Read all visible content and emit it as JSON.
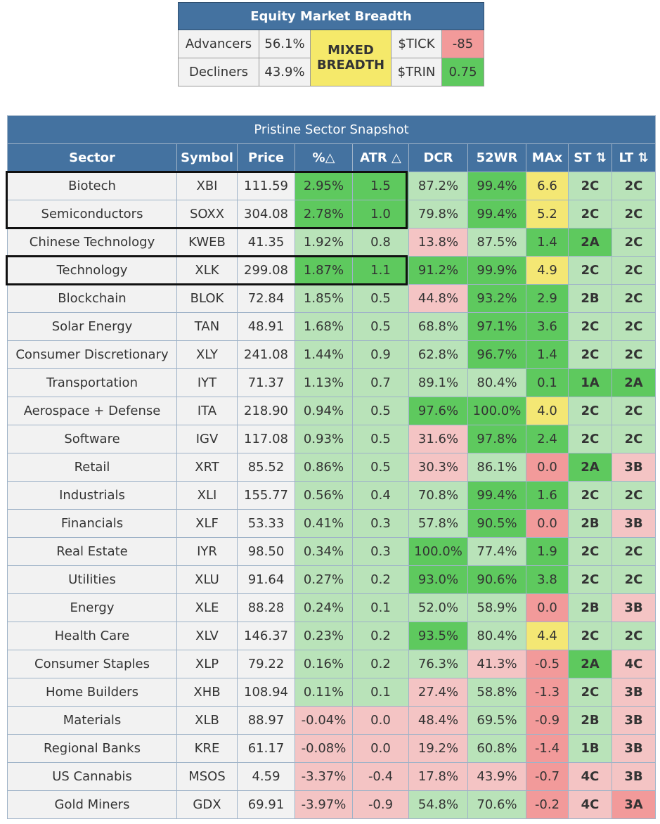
{
  "breadth": {
    "title": "Equity Market Breadth",
    "advancers_label": "Advancers",
    "advancers_value": "56.1%",
    "decliners_label": "Decliners",
    "decliners_value": "43.9%",
    "status_line1": "MIXED",
    "status_line2": "BREADTH",
    "tick_label": "$TICK",
    "tick_value": "-85",
    "trin_label": "$TRIN",
    "trin_value": "0.75"
  },
  "snapshot": {
    "title": "Pristine Sector Snapshot",
    "columns": [
      "Sector",
      "Symbol",
      "Price",
      "%△",
      "ATR △",
      "DCR",
      "52WR",
      "MAx",
      "ST ⇅",
      "LT ⇅"
    ],
    "rows": [
      {
        "sector": "Biotech",
        "symbol": "XBI",
        "price": "111.59",
        "pct": "2.95%",
        "atr": "1.5",
        "dcr": "87.2%",
        "wr": "99.4%",
        "max": "6.6",
        "st": "2C",
        "lt": "2C",
        "colors": [
          "dg",
          "dg",
          "lg",
          "dg",
          "y",
          "lg",
          "lg"
        ]
      },
      {
        "sector": "Semiconductors",
        "symbol": "SOXX",
        "price": "304.08",
        "pct": "2.78%",
        "atr": "1.0",
        "dcr": "79.8%",
        "wr": "99.4%",
        "max": "5.2",
        "st": "2C",
        "lt": "2C",
        "colors": [
          "dg",
          "dg",
          "lg",
          "dg",
          "y",
          "lg",
          "lg"
        ]
      },
      {
        "sector": "Chinese Technology",
        "symbol": "KWEB",
        "price": "41.35",
        "pct": "1.92%",
        "atr": "0.8",
        "dcr": "13.8%",
        "wr": "87.5%",
        "max": "1.4",
        "st": "2A",
        "lt": "2C",
        "colors": [
          "lg",
          "lg",
          "lr",
          "lg",
          "dg",
          "dg",
          "lg"
        ]
      },
      {
        "sector": "Technology",
        "symbol": "XLK",
        "price": "299.08",
        "pct": "1.87%",
        "atr": "1.1",
        "dcr": "91.2%",
        "wr": "99.9%",
        "max": "4.9",
        "st": "2C",
        "lt": "2C",
        "colors": [
          "dg",
          "dg",
          "dg",
          "dg",
          "y",
          "lg",
          "lg"
        ]
      },
      {
        "sector": "Blockchain",
        "symbol": "BLOK",
        "price": "72.84",
        "pct": "1.85%",
        "atr": "0.5",
        "dcr": "44.8%",
        "wr": "93.2%",
        "max": "2.9",
        "st": "2B",
        "lt": "2C",
        "colors": [
          "lg",
          "lg",
          "lr",
          "dg",
          "dg",
          "lg",
          "lg"
        ]
      },
      {
        "sector": "Solar Energy",
        "symbol": "TAN",
        "price": "48.91",
        "pct": "1.68%",
        "atr": "0.5",
        "dcr": "68.8%",
        "wr": "97.1%",
        "max": "3.6",
        "st": "2C",
        "lt": "2C",
        "colors": [
          "lg",
          "lg",
          "lg",
          "dg",
          "dg",
          "lg",
          "lg"
        ]
      },
      {
        "sector": "Consumer Discretionary",
        "symbol": "XLY",
        "price": "241.08",
        "pct": "1.44%",
        "atr": "0.9",
        "dcr": "62.8%",
        "wr": "96.7%",
        "max": "1.4",
        "st": "2C",
        "lt": "2C",
        "colors": [
          "lg",
          "lg",
          "lg",
          "dg",
          "dg",
          "lg",
          "lg"
        ]
      },
      {
        "sector": "Transportation",
        "symbol": "IYT",
        "price": "71.37",
        "pct": "1.13%",
        "atr": "0.7",
        "dcr": "89.1%",
        "wr": "80.4%",
        "max": "0.1",
        "st": "1A",
        "lt": "2A",
        "colors": [
          "lg",
          "lg",
          "lg",
          "lg",
          "dg",
          "dg",
          "dg"
        ]
      },
      {
        "sector": "Aerospace + Defense",
        "symbol": "ITA",
        "price": "218.90",
        "pct": "0.94%",
        "atr": "0.5",
        "dcr": "97.6%",
        "wr": "100.0%",
        "max": "4.0",
        "st": "2C",
        "lt": "2C",
        "colors": [
          "lg",
          "lg",
          "dg",
          "dg",
          "y",
          "lg",
          "lg"
        ]
      },
      {
        "sector": "Software",
        "symbol": "IGV",
        "price": "117.08",
        "pct": "0.93%",
        "atr": "0.5",
        "dcr": "31.6%",
        "wr": "97.8%",
        "max": "2.4",
        "st": "2C",
        "lt": "2C",
        "colors": [
          "lg",
          "lg",
          "lr",
          "dg",
          "dg",
          "lg",
          "lg"
        ]
      },
      {
        "sector": "Retail",
        "symbol": "XRT",
        "price": "85.52",
        "pct": "0.86%",
        "atr": "0.5",
        "dcr": "30.3%",
        "wr": "86.1%",
        "max": "0.0",
        "st": "2A",
        "lt": "3B",
        "colors": [
          "lg",
          "lg",
          "lr",
          "lg",
          "red",
          "dg",
          "lr"
        ]
      },
      {
        "sector": "Industrials",
        "symbol": "XLI",
        "price": "155.77",
        "pct": "0.56%",
        "atr": "0.4",
        "dcr": "70.8%",
        "wr": "99.4%",
        "max": "1.6",
        "st": "2C",
        "lt": "2C",
        "colors": [
          "lg",
          "lg",
          "lg",
          "dg",
          "dg",
          "lg",
          "lg"
        ]
      },
      {
        "sector": "Financials",
        "symbol": "XLF",
        "price": "53.33",
        "pct": "0.41%",
        "atr": "0.3",
        "dcr": "57.8%",
        "wr": "90.5%",
        "max": "0.0",
        "st": "2B",
        "lt": "3B",
        "colors": [
          "lg",
          "lg",
          "lg",
          "dg",
          "red",
          "lg",
          "lr"
        ]
      },
      {
        "sector": "Real Estate",
        "symbol": "IYR",
        "price": "98.50",
        "pct": "0.34%",
        "atr": "0.3",
        "dcr": "100.0%",
        "wr": "77.4%",
        "max": "1.9",
        "st": "2C",
        "lt": "2C",
        "colors": [
          "lg",
          "lg",
          "dg",
          "lg",
          "dg",
          "lg",
          "lg"
        ]
      },
      {
        "sector": "Utilities",
        "symbol": "XLU",
        "price": "91.64",
        "pct": "0.27%",
        "atr": "0.2",
        "dcr": "93.0%",
        "wr": "90.6%",
        "max": "3.8",
        "st": "2C",
        "lt": "2C",
        "colors": [
          "lg",
          "lg",
          "dg",
          "dg",
          "dg",
          "lg",
          "lg"
        ]
      },
      {
        "sector": "Energy",
        "symbol": "XLE",
        "price": "88.28",
        "pct": "0.24%",
        "atr": "0.1",
        "dcr": "52.0%",
        "wr": "58.9%",
        "max": "0.0",
        "st": "2B",
        "lt": "3B",
        "colors": [
          "lg",
          "lg",
          "lg",
          "lg",
          "red",
          "lg",
          "lr"
        ]
      },
      {
        "sector": "Health Care",
        "symbol": "XLV",
        "price": "146.37",
        "pct": "0.23%",
        "atr": "0.2",
        "dcr": "93.5%",
        "wr": "80.4%",
        "max": "4.4",
        "st": "2C",
        "lt": "2C",
        "colors": [
          "lg",
          "lg",
          "dg",
          "lg",
          "y",
          "lg",
          "lg"
        ]
      },
      {
        "sector": "Consumer Staples",
        "symbol": "XLP",
        "price": "79.22",
        "pct": "0.16%",
        "atr": "0.2",
        "dcr": "76.3%",
        "wr": "41.3%",
        "max": "-0.5",
        "st": "2A",
        "lt": "4C",
        "colors": [
          "lg",
          "lg",
          "lg",
          "lr",
          "red",
          "dg",
          "lr"
        ]
      },
      {
        "sector": "Home Builders",
        "symbol": "XHB",
        "price": "108.94",
        "pct": "0.11%",
        "atr": "0.1",
        "dcr": "27.4%",
        "wr": "58.8%",
        "max": "-1.3",
        "st": "2C",
        "lt": "3B",
        "colors": [
          "lg",
          "lg",
          "lr",
          "lg",
          "red",
          "lg",
          "lr"
        ]
      },
      {
        "sector": "Materials",
        "symbol": "XLB",
        "price": "88.97",
        "pct": "-0.04%",
        "atr": "0.0",
        "dcr": "48.4%",
        "wr": "69.5%",
        "max": "-0.9",
        "st": "2B",
        "lt": "3B",
        "colors": [
          "lr",
          "lr",
          "lr",
          "lg",
          "red",
          "lg",
          "lr"
        ]
      },
      {
        "sector": "Regional Banks",
        "symbol": "KRE",
        "price": "61.17",
        "pct": "-0.08%",
        "atr": "0.0",
        "dcr": "19.2%",
        "wr": "60.8%",
        "max": "-1.4",
        "st": "1B",
        "lt": "3B",
        "colors": [
          "lr",
          "lr",
          "lr",
          "lg",
          "red",
          "lg",
          "lr"
        ]
      },
      {
        "sector": "US Cannabis",
        "symbol": "MSOS",
        "price": "4.59",
        "pct": "-3.37%",
        "atr": "-0.4",
        "dcr": "17.8%",
        "wr": "43.9%",
        "max": "-0.7",
        "st": "4C",
        "lt": "3B",
        "colors": [
          "lr",
          "lr",
          "lr",
          "lr",
          "red",
          "lr",
          "lr"
        ]
      },
      {
        "sector": "Gold Miners",
        "symbol": "GDX",
        "price": "69.91",
        "pct": "-3.97%",
        "atr": "-0.9",
        "dcr": "54.8%",
        "wr": "70.6%",
        "max": "-0.2",
        "st": "4C",
        "lt": "3A",
        "colors": [
          "lr",
          "lr",
          "lg",
          "lg",
          "red",
          "lr",
          "red"
        ]
      }
    ]
  },
  "colors": {
    "header_blue": "#4472a0",
    "dark_green": "#5ec95e",
    "light_green": "#b9e3b9",
    "light_red": "#f4c4c4",
    "red": "#f29a9a",
    "yellow": "#f4e774",
    "neutral": "#f2f2f2"
  }
}
